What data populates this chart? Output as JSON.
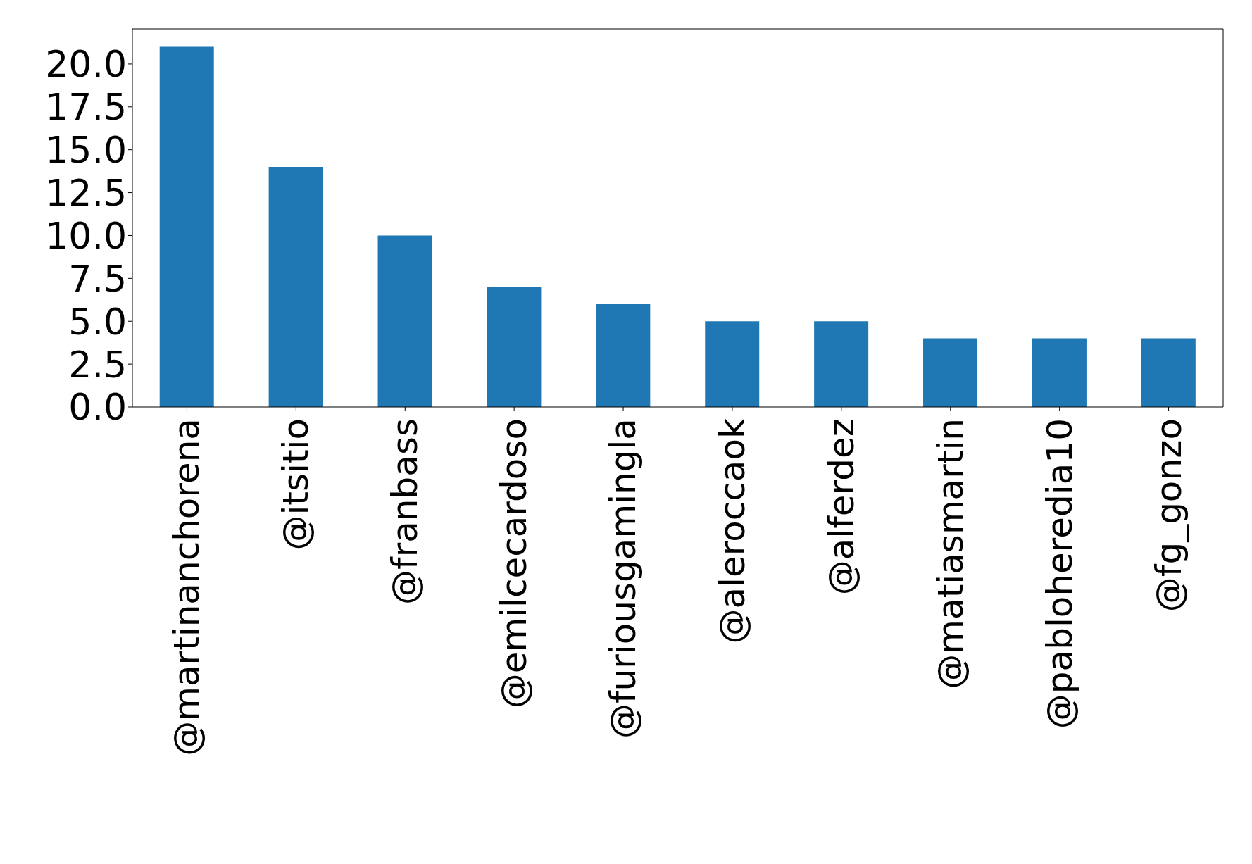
{
  "chart_data": {
    "type": "bar",
    "categories": [
      "@martinanchorena",
      "@itsitio",
      "@franbass",
      "@emilcecardoso",
      "@furiousgamingla",
      "@aleroccaok",
      "@alferdez",
      "@matiasmartin",
      "@pabloheredia10",
      "@fg_gonzo"
    ],
    "values": [
      21,
      14,
      10,
      7,
      6,
      5,
      5,
      4,
      4,
      4
    ],
    "color": "#1f77b4",
    "ylim": [
      0,
      22.05
    ],
    "yticks": [
      {
        "value": 0,
        "label": "0.0"
      },
      {
        "value": 2.5,
        "label": "2.5"
      },
      {
        "value": 5,
        "label": "5.0"
      },
      {
        "value": 7.5,
        "label": "7.5"
      },
      {
        "value": 10,
        "label": "10.0"
      },
      {
        "value": 12.5,
        "label": "12.5"
      },
      {
        "value": 15,
        "label": "15.0"
      },
      {
        "value": 17.5,
        "label": "17.5"
      },
      {
        "value": 20,
        "label": "20.0"
      }
    ],
    "grid": false,
    "legend": false
  }
}
